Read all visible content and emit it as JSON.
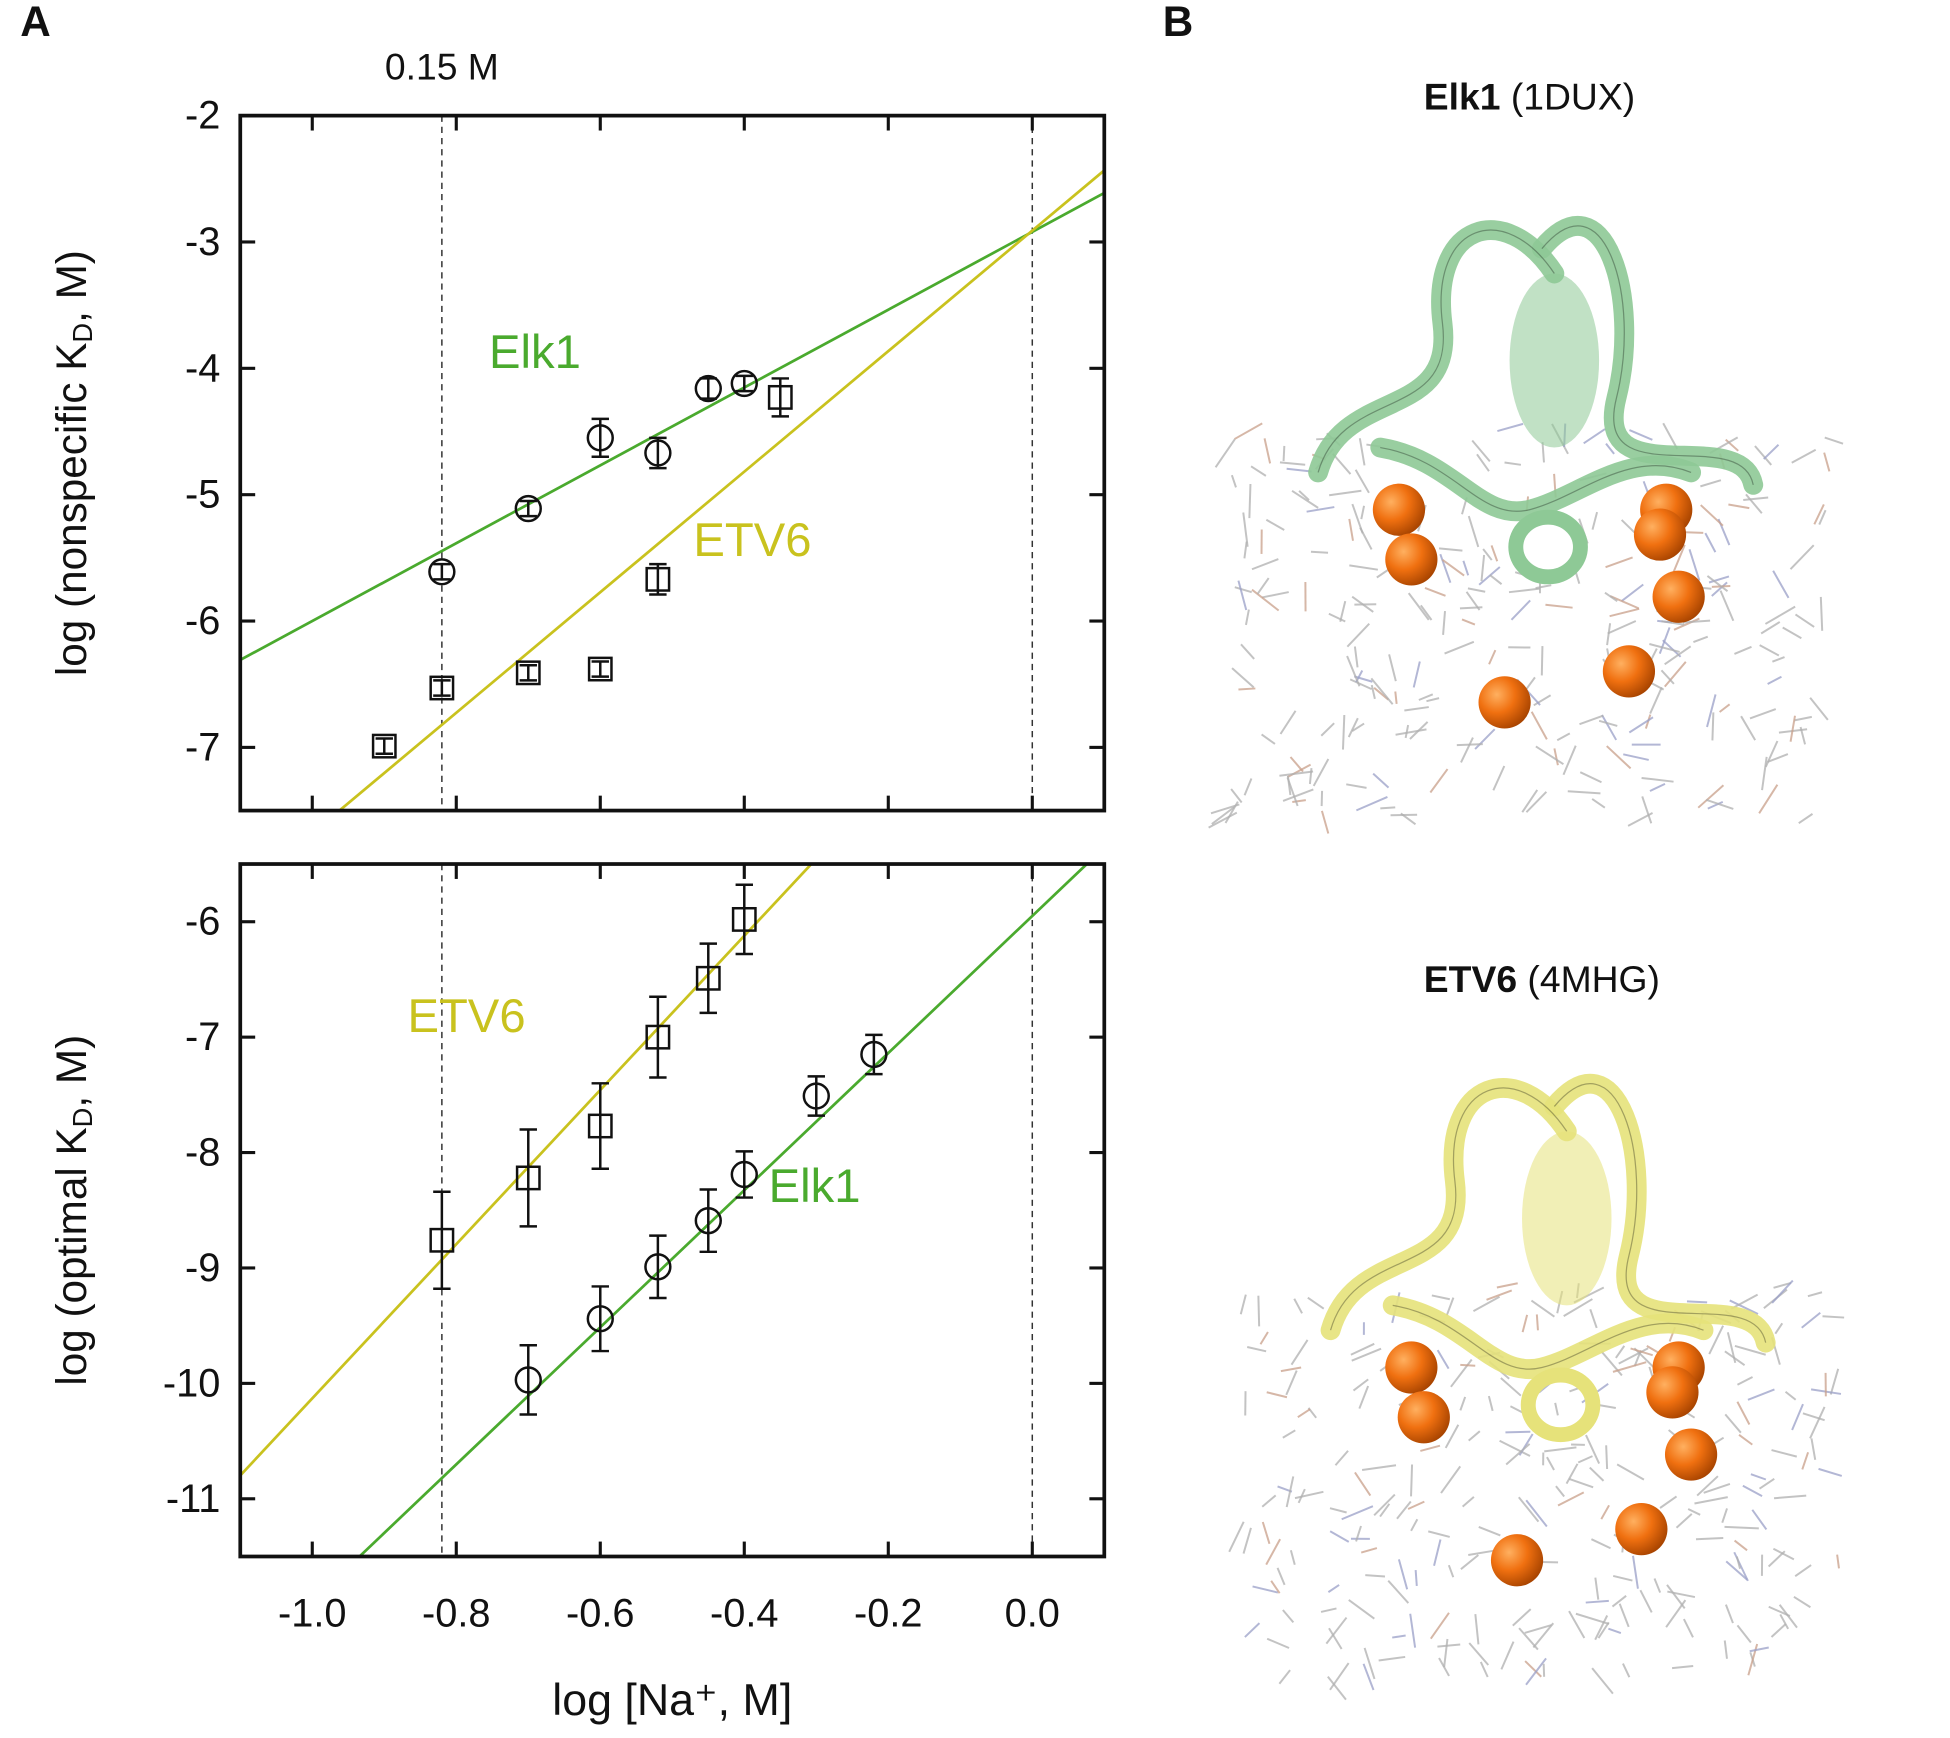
{
  "panel_labels": [
    "A",
    "B"
  ],
  "chart_data": [
    {
      "type": "scatter",
      "ylabel_parts": [
        "log (nonspecific K",
        "D",
        ", M)"
      ],
      "annotation": "0.15 M",
      "xlim": [
        -1.1,
        0.1
      ],
      "ylim": [
        -7.5,
        -2
      ],
      "yticks": [
        -2,
        -3,
        -4,
        -5,
        -6,
        -7
      ],
      "vlines": [
        -0.82,
        0
      ],
      "series": [
        {
          "name": "Elk1",
          "color": "#4aaa2e",
          "marker": "circle",
          "x": [
            -0.82,
            -0.7,
            -0.6,
            -0.52,
            -0.45,
            -0.4
          ],
          "values": [
            -5.61,
            -5.11,
            -4.55,
            -4.67,
            -4.16,
            -4.12
          ],
          "errors": [
            0.06,
            0.06,
            0.15,
            0.12,
            0.08,
            0.06
          ],
          "fit": {
            "slope": 3.08,
            "intercept": -2.92
          }
        },
        {
          "name": "ETV6",
          "color": "#c9c21e",
          "marker": "square",
          "x": [
            -0.9,
            -0.82,
            -0.7,
            -0.6,
            -0.52,
            -0.35
          ],
          "values": [
            -6.99,
            -6.53,
            -6.41,
            -6.38,
            -5.67,
            -4.23
          ],
          "errors": [
            0.06,
            0.06,
            0.06,
            0.06,
            0.12,
            0.15
          ],
          "fit": {
            "slope": 4.77,
            "intercept": -2.91
          }
        }
      ]
    },
    {
      "type": "scatter",
      "ylabel_parts": [
        "log (optimal K",
        "D",
        ", M)"
      ],
      "xlabel": "log [Na⁺, M]",
      "xlim": [
        -1.1,
        0.1
      ],
      "ylim": [
        -11.5,
        -5.5
      ],
      "xticks": [
        {
          "value": -1.0,
          "label": "-1.0"
        },
        -0.8,
        -0.6,
        -0.4,
        -0.2,
        {
          "value": 0,
          "label": "0.0"
        }
      ],
      "yticks": [
        -6,
        -7,
        -8,
        -9,
        -10,
        -11
      ],
      "vlines": [
        -0.82,
        0
      ],
      "series": [
        {
          "name": "ETV6",
          "color": "#c9c21e",
          "marker": "square",
          "x": [
            -0.82,
            -0.7,
            -0.6,
            -0.52,
            -0.45,
            -0.4
          ],
          "values": [
            -8.76,
            -8.22,
            -7.77,
            -7.0,
            -6.49,
            -5.98
          ],
          "errors": [
            0.42,
            0.42,
            0.37,
            0.35,
            0.3,
            0.3
          ],
          "fit": {
            "slope": 6.68,
            "intercept": -3.45
          }
        },
        {
          "name": "Elk1",
          "color": "#4aaa2e",
          "marker": "circle",
          "x": [
            -0.7,
            -0.6,
            -0.52,
            -0.45,
            -0.4,
            -0.3,
            -0.22
          ],
          "values": [
            -9.97,
            -9.44,
            -8.99,
            -8.59,
            -8.19,
            -7.51,
            -7.15
          ],
          "errors": [
            0.3,
            0.28,
            0.27,
            0.27,
            0.2,
            0.17,
            0.17
          ],
          "fit": {
            "slope": 5.94,
            "intercept": -5.95
          }
        }
      ]
    }
  ],
  "structures": [
    {
      "protein": "Elk1",
      "pdb": "(1DUX)"
    },
    {
      "protein": "ETV6",
      "pdb": "(4MHG)"
    }
  ]
}
